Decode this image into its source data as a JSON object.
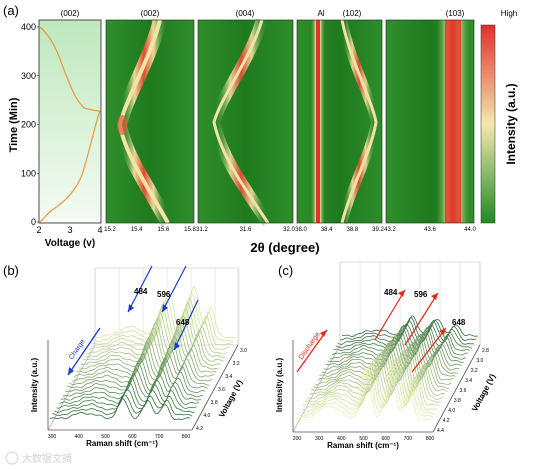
{
  "panel_a": {
    "label": "(a)",
    "y_axis_label": "Time (Min)",
    "y_ticks": [
      "400",
      "300",
      "200",
      "100",
      "0"
    ],
    "voltage_panel": {
      "title": "(002)",
      "x_ticks": [
        "2",
        "3",
        "4"
      ],
      "x_label": "Voltage (v)"
    },
    "subpanels": [
      {
        "title": "(002)",
        "x_ticks": [
          "15.2",
          "15.4",
          "15.6",
          "15.8"
        ]
      },
      {
        "title": "(004)",
        "x_ticks": [
          "31.2",
          "31.6",
          "32.0"
        ]
      },
      {
        "title_left": "Al",
        "title": "(102)",
        "x_ticks": [
          "38.0",
          "38.4",
          "38.8",
          "39.2"
        ]
      },
      {
        "title": "(103)",
        "x_ticks": [
          "43.2",
          "43.6",
          "44.0"
        ]
      }
    ],
    "x_axis_label": "2θ (degree)",
    "colorbar": {
      "high_label": "High",
      "label": "Intensity (a.u.)",
      "colors": [
        "#e0302a",
        "#f5e7b0",
        "#1f8a22"
      ]
    }
  },
  "panel_b": {
    "label": "(b)",
    "y_label": "Intensity (a.u.)",
    "x_label": "Raman shift (cm⁻¹)",
    "x_ticks": [
      "300",
      "400",
      "500",
      "600",
      "700",
      "800"
    ],
    "v_label": "Voltage (V)",
    "v_ticks": [
      "3.0",
      "3.2",
      "3.4",
      "3.6",
      "3.8",
      "4.0",
      "4.2"
    ],
    "arrow_label": "Charge",
    "peaks": [
      "484",
      "596",
      "648"
    ]
  },
  "panel_c": {
    "label": "(c)",
    "y_label": "Intensity (a.u.)",
    "x_label": "Raman shift (cm⁻¹)",
    "x_ticks": [
      "200",
      "300",
      "400",
      "500",
      "600",
      "700",
      "800"
    ],
    "v_label": "Voltage (V)",
    "v_ticks": [
      "2.8",
      "3.0",
      "3.2",
      "3.4",
      "3.6",
      "3.8",
      "4.0",
      "4.2",
      "4.4"
    ],
    "arrow_label": "Discharge",
    "peaks": [
      "484",
      "596",
      "648"
    ]
  },
  "watermark": "大数据文摘"
}
